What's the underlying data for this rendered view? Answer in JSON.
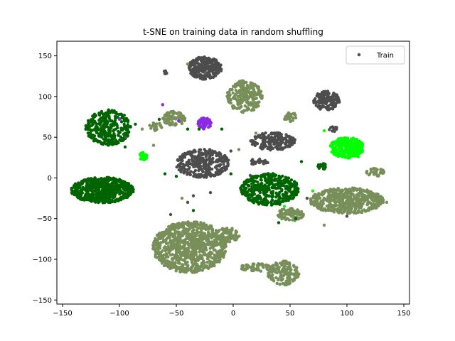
{
  "chart_data": {
    "type": "scatter",
    "title": "t-SNE on training data in random shuffling",
    "xlabel": "",
    "ylabel": "",
    "xlim": [
      -155,
      155
    ],
    "ylim": [
      -155,
      168
    ],
    "xticks": [
      -150,
      -100,
      -50,
      0,
      50,
      100,
      150
    ],
    "yticks": [
      -150,
      -100,
      -50,
      0,
      50,
      100,
      150
    ],
    "grid": false,
    "legend": {
      "placement": "top-right",
      "entries": [
        {
          "label": "Train",
          "color": "#555555"
        }
      ]
    },
    "clusters": [
      {
        "color": "#4d4d4d",
        "cx": -25,
        "cy": 135,
        "rx": 15,
        "ry": 14,
        "n": 260
      },
      {
        "color": "#4d4d4d",
        "cx": -60,
        "cy": 130,
        "rx": 3,
        "ry": 2,
        "n": 8
      },
      {
        "color": "#4d4d4d",
        "cx": 82,
        "cy": 95,
        "rx": 12,
        "ry": 12,
        "n": 140
      },
      {
        "color": "#4d4d4d",
        "cx": 35,
        "cy": 45,
        "rx": 20,
        "ry": 11,
        "n": 200
      },
      {
        "color": "#4d4d4d",
        "cx": -27,
        "cy": 18,
        "rx": 24,
        "ry": 18,
        "n": 330
      },
      {
        "color": "#4d4d4d",
        "cx": 22,
        "cy": 20,
        "rx": 9,
        "ry": 4,
        "n": 24
      },
      {
        "color": "#4d4d4d",
        "cx": 88,
        "cy": 60,
        "rx": 4,
        "ry": 3,
        "n": 10
      },
      {
        "color": "#788f5a",
        "cx": 10,
        "cy": 100,
        "rx": 16,
        "ry": 20,
        "n": 220
      },
      {
        "color": "#788f5a",
        "cx": -52,
        "cy": 73,
        "rx": 10,
        "ry": 9,
        "n": 90
      },
      {
        "color": "#788f5a",
        "cx": -68,
        "cy": 63,
        "rx": 6,
        "ry": 5,
        "n": 22
      },
      {
        "color": "#788f5a",
        "cx": 100,
        "cy": -28,
        "rx": 33,
        "ry": 16,
        "n": 520
      },
      {
        "color": "#788f5a",
        "cx": 125,
        "cy": 7,
        "rx": 8,
        "ry": 5,
        "n": 35
      },
      {
        "color": "#788f5a",
        "cx": 50,
        "cy": -45,
        "rx": 12,
        "ry": 8,
        "n": 90
      },
      {
        "color": "#788f5a",
        "cx": -38,
        "cy": -85,
        "rx": 33,
        "ry": 32,
        "n": 900
      },
      {
        "color": "#788f5a",
        "cx": -5,
        "cy": -70,
        "rx": 11,
        "ry": 9,
        "n": 80
      },
      {
        "color": "#788f5a",
        "cx": 44,
        "cy": -117,
        "rx": 14,
        "ry": 15,
        "n": 170
      },
      {
        "color": "#788f5a",
        "cx": 20,
        "cy": -110,
        "rx": 15,
        "ry": 5,
        "n": 60
      },
      {
        "color": "#788f5a",
        "cx": 50,
        "cy": 75,
        "rx": 6,
        "ry": 6,
        "n": 25
      },
      {
        "color": "#006400",
        "cx": -110,
        "cy": 62,
        "rx": 20,
        "ry": 22,
        "n": 330
      },
      {
        "color": "#006400",
        "cx": -115,
        "cy": -15,
        "rx": 28,
        "ry": 16,
        "n": 600
      },
      {
        "color": "#006400",
        "cx": 32,
        "cy": -14,
        "rx": 26,
        "ry": 20,
        "n": 420
      },
      {
        "color": "#006400",
        "cx": 78,
        "cy": 14,
        "rx": 4,
        "ry": 4,
        "n": 18
      },
      {
        "color": "#00ff00",
        "cx": 100,
        "cy": 37,
        "rx": 15,
        "ry": 13,
        "n": 280
      },
      {
        "color": "#00ff00",
        "cx": -79,
        "cy": 27,
        "rx": 4,
        "ry": 5,
        "n": 30
      },
      {
        "color": "#8a2be2",
        "cx": -25,
        "cy": 67,
        "rx": 6,
        "ry": 7,
        "n": 80
      }
    ],
    "strays": [
      {
        "color": "#4d4d4d",
        "x": -60,
        "y": 128
      },
      {
        "color": "#4d4d4d",
        "x": -2,
        "y": 33
      },
      {
        "color": "#4d4d4d",
        "x": 15,
        "y": 3
      },
      {
        "color": "#4d4d4d",
        "x": -40,
        "y": -30
      },
      {
        "color": "#4d4d4d",
        "x": -35,
        "y": -22
      },
      {
        "color": "#4d4d4d",
        "x": -55,
        "y": -45
      },
      {
        "color": "#4d4d4d",
        "x": 100,
        "y": -47
      },
      {
        "color": "#4d4d4d",
        "x": 65,
        "y": -25
      },
      {
        "color": "#4d4d4d",
        "x": -20,
        "y": -18
      },
      {
        "color": "#4d4d4d",
        "x": -95,
        "y": 50
      },
      {
        "color": "#006400",
        "x": -86,
        "y": 66
      },
      {
        "color": "#006400",
        "x": -65,
        "y": 72
      },
      {
        "color": "#006400",
        "x": -40,
        "y": 60
      },
      {
        "color": "#006400",
        "x": -30,
        "y": 60
      },
      {
        "color": "#006400",
        "x": -10,
        "y": 60
      },
      {
        "color": "#006400",
        "x": -60,
        "y": 5
      },
      {
        "color": "#006400",
        "x": -2,
        "y": 5
      },
      {
        "color": "#006400",
        "x": 55,
        "y": -50
      },
      {
        "color": "#006400",
        "x": 40,
        "y": -55
      },
      {
        "color": "#006400",
        "x": -35,
        "y": -40
      },
      {
        "color": "#006400",
        "x": -50,
        "y": 2
      },
      {
        "color": "#006400",
        "x": -95,
        "y": 38
      },
      {
        "color": "#006400",
        "x": 60,
        "y": 20
      },
      {
        "color": "#00ff00",
        "x": 70,
        "y": -16
      },
      {
        "color": "#00ff00",
        "x": 110,
        "y": 26
      },
      {
        "color": "#00ff00",
        "x": 45,
        "y": -35
      },
      {
        "color": "#00ff00",
        "x": 80,
        "y": 58
      },
      {
        "color": "#8a2be2",
        "x": -62,
        "y": 90
      },
      {
        "color": "#8a2be2",
        "x": -100,
        "y": 72
      },
      {
        "color": "#8a2be2",
        "x": -48,
        "y": 70
      },
      {
        "color": "#788f5a",
        "x": -70,
        "y": 40
      },
      {
        "color": "#788f5a",
        "x": -80,
        "y": 60
      },
      {
        "color": "#788f5a",
        "x": 135,
        "y": -30
      },
      {
        "color": "#788f5a",
        "x": 5,
        "y": 35
      },
      {
        "color": "#788f5a",
        "x": -40,
        "y": 140
      },
      {
        "color": "#788f5a",
        "x": 20,
        "y": 55
      },
      {
        "color": "#788f5a",
        "x": -45,
        "y": -25
      },
      {
        "color": "#788f5a",
        "x": 80,
        "y": -58
      }
    ]
  }
}
